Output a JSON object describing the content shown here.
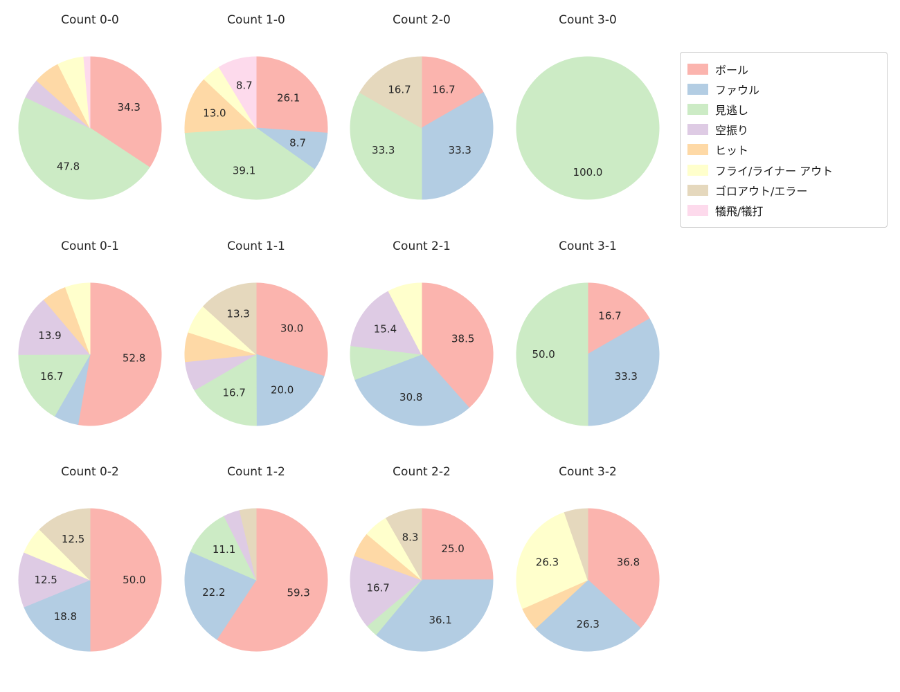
{
  "figure": {
    "background": "#ffffff"
  },
  "chart_style": {
    "grid": "4x3",
    "label_min_pct": 8,
    "start_angle": "top",
    "direction": "clockwise",
    "label_color": "#262626",
    "title_color": "#262626",
    "legend_position": "top-right"
  },
  "legend": {
    "items": [
      {
        "key": "ball",
        "label": "ボール",
        "color": "#fbb4ae"
      },
      {
        "key": "foul",
        "label": "ファウル",
        "color": "#b3cde3"
      },
      {
        "key": "minogashi",
        "label": "見逃し",
        "color": "#ccebc5"
      },
      {
        "key": "karaburi",
        "label": "空振り",
        "color": "#decbe4"
      },
      {
        "key": "hit",
        "label": "ヒット",
        "color": "#fed9a6"
      },
      {
        "key": "fly",
        "label": "フライ/ライナー アウト",
        "color": "#ffffcc"
      },
      {
        "key": "goro",
        "label": "ゴロアウト/エラー",
        "color": "#e5d8bd"
      },
      {
        "key": "gihi",
        "label": "犠飛/犠打",
        "color": "#fddaec"
      }
    ]
  },
  "chart_data": [
    {
      "type": "pie",
      "title": "Count 0-0",
      "slices": [
        {
          "key": "ball",
          "pct": 34.3
        },
        {
          "key": "minogashi",
          "pct": 47.8
        },
        {
          "key": "karaburi",
          "pct": 4.5
        },
        {
          "key": "hit",
          "pct": 6.0
        },
        {
          "key": "fly",
          "pct": 6.0
        },
        {
          "key": "gihi",
          "pct": 1.4
        }
      ]
    },
    {
      "type": "pie",
      "title": "Count 1-0",
      "slices": [
        {
          "key": "ball",
          "pct": 26.1
        },
        {
          "key": "foul",
          "pct": 8.7
        },
        {
          "key": "minogashi",
          "pct": 39.1
        },
        {
          "key": "hit",
          "pct": 13.0
        },
        {
          "key": "fly",
          "pct": 4.3
        },
        {
          "key": "gihi",
          "pct": 8.7
        }
      ]
    },
    {
      "type": "pie",
      "title": "Count 2-0",
      "slices": [
        {
          "key": "ball",
          "pct": 16.7
        },
        {
          "key": "foul",
          "pct": 33.3
        },
        {
          "key": "minogashi",
          "pct": 33.3
        },
        {
          "key": "goro",
          "pct": 16.7
        }
      ]
    },
    {
      "type": "pie",
      "title": "Count 3-0",
      "slices": [
        {
          "key": "minogashi",
          "pct": 100.0
        }
      ]
    },
    {
      "type": "pie",
      "title": "Count 0-1",
      "slices": [
        {
          "key": "ball",
          "pct": 52.8
        },
        {
          "key": "foul",
          "pct": 5.6
        },
        {
          "key": "minogashi",
          "pct": 16.7
        },
        {
          "key": "karaburi",
          "pct": 13.9
        },
        {
          "key": "hit",
          "pct": 5.6
        },
        {
          "key": "fly",
          "pct": 5.6
        }
      ]
    },
    {
      "type": "pie",
      "title": "Count 1-1",
      "slices": [
        {
          "key": "ball",
          "pct": 30.0
        },
        {
          "key": "foul",
          "pct": 20.0
        },
        {
          "key": "minogashi",
          "pct": 16.7
        },
        {
          "key": "karaburi",
          "pct": 6.7
        },
        {
          "key": "hit",
          "pct": 6.7
        },
        {
          "key": "fly",
          "pct": 6.7
        },
        {
          "key": "goro",
          "pct": 13.3
        }
      ]
    },
    {
      "type": "pie",
      "title": "Count 2-1",
      "slices": [
        {
          "key": "ball",
          "pct": 38.5
        },
        {
          "key": "foul",
          "pct": 30.8
        },
        {
          "key": "minogashi",
          "pct": 7.7
        },
        {
          "key": "karaburi",
          "pct": 15.4
        },
        {
          "key": "fly",
          "pct": 7.7
        }
      ]
    },
    {
      "type": "pie",
      "title": "Count 3-1",
      "slices": [
        {
          "key": "ball",
          "pct": 16.7
        },
        {
          "key": "foul",
          "pct": 33.3
        },
        {
          "key": "minogashi",
          "pct": 50.0
        }
      ]
    },
    {
      "type": "pie",
      "title": "Count 0-2",
      "slices": [
        {
          "key": "ball",
          "pct": 50.0
        },
        {
          "key": "foul",
          "pct": 18.8
        },
        {
          "key": "karaburi",
          "pct": 12.5
        },
        {
          "key": "fly",
          "pct": 6.2
        },
        {
          "key": "goro",
          "pct": 12.5
        }
      ]
    },
    {
      "type": "pie",
      "title": "Count 1-2",
      "slices": [
        {
          "key": "ball",
          "pct": 59.3
        },
        {
          "key": "foul",
          "pct": 22.2
        },
        {
          "key": "minogashi",
          "pct": 11.1
        },
        {
          "key": "karaburi",
          "pct": 3.7
        },
        {
          "key": "goro",
          "pct": 3.7
        }
      ]
    },
    {
      "type": "pie",
      "title": "Count 2-2",
      "slices": [
        {
          "key": "ball",
          "pct": 25.0
        },
        {
          "key": "foul",
          "pct": 36.1
        },
        {
          "key": "minogashi",
          "pct": 2.8
        },
        {
          "key": "karaburi",
          "pct": 16.7
        },
        {
          "key": "hit",
          "pct": 5.6
        },
        {
          "key": "fly",
          "pct": 5.6
        },
        {
          "key": "goro",
          "pct": 8.3
        }
      ]
    },
    {
      "type": "pie",
      "title": "Count 3-2",
      "slices": [
        {
          "key": "ball",
          "pct": 36.8
        },
        {
          "key": "foul",
          "pct": 26.3
        },
        {
          "key": "hit",
          "pct": 5.3
        },
        {
          "key": "fly",
          "pct": 26.3
        },
        {
          "key": "goro",
          "pct": 5.3
        }
      ]
    }
  ]
}
